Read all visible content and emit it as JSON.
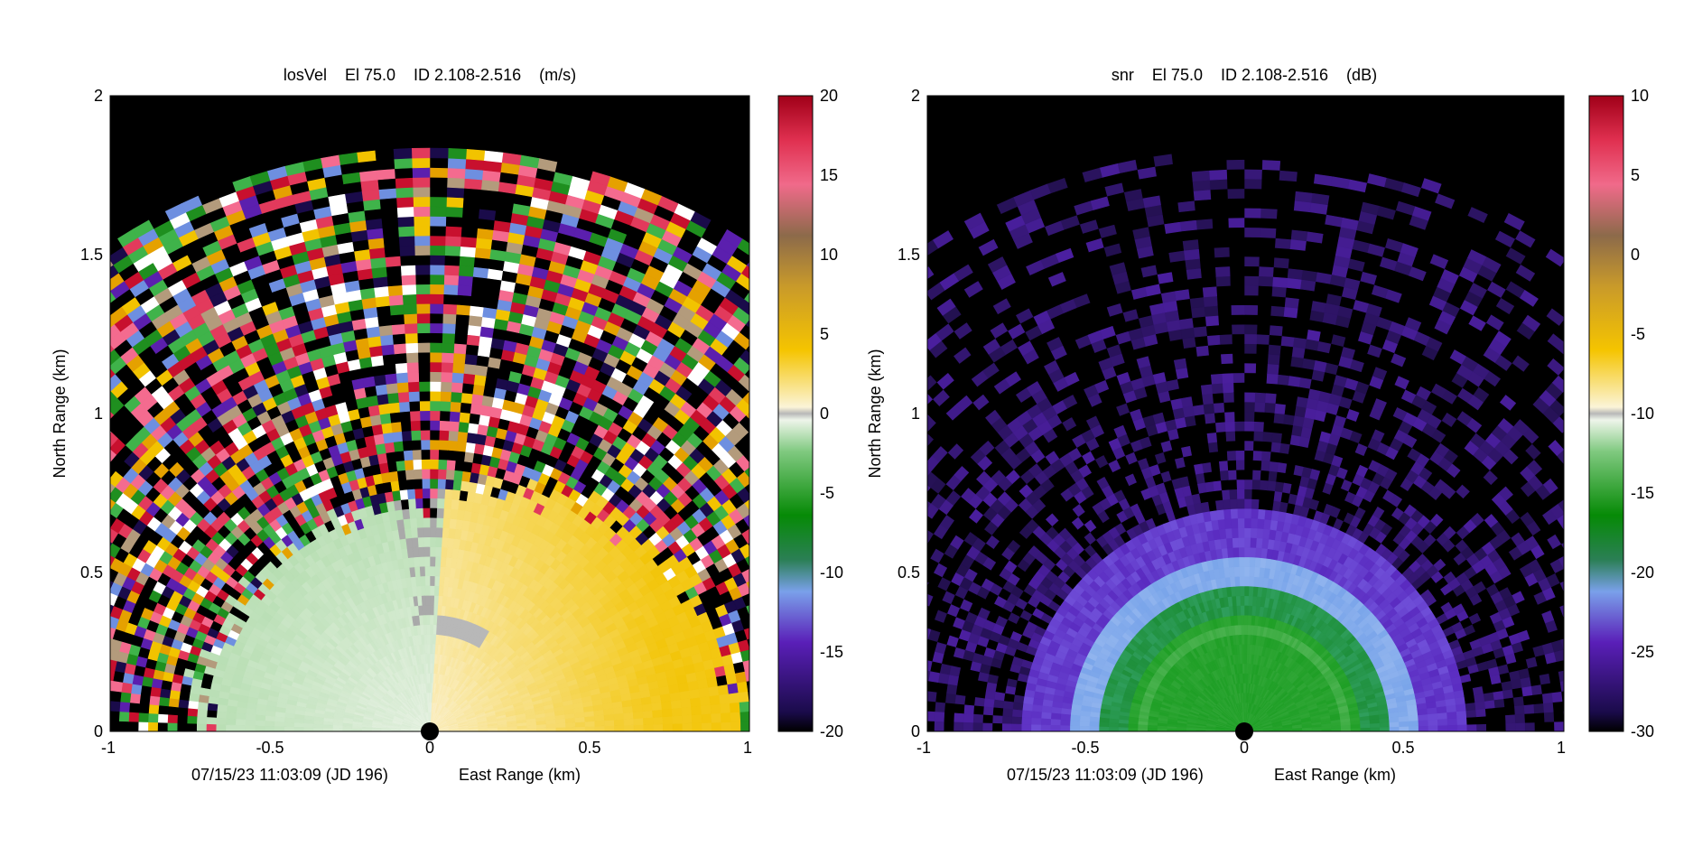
{
  "chart_data": [
    {
      "type": "heatmap",
      "field": "losVel",
      "title": "losVel    El 75.0    ID 2.108-2.516    (m/s)",
      "xlabel": "East Range (km)",
      "ylabel": "North Range (km)",
      "timestamp": "07/15/23 11:03:09 (JD 196)",
      "xlim": [
        -1,
        1
      ],
      "ylim": [
        0,
        2
      ],
      "x_ticks": [
        "-1",
        "-0.5",
        "0",
        "0.5",
        "1"
      ],
      "y_ticks": [
        "0",
        "0.5",
        "1",
        "1.5",
        "2"
      ],
      "max_range_km": 1.83,
      "colorbar": {
        "min": -20,
        "max": 20,
        "ticks": [
          "20",
          "15",
          "10",
          "5",
          "0",
          "-5",
          "-10",
          "-15",
          "-20"
        ]
      },
      "regions": [
        {
          "name": "west near field",
          "value": -2,
          "range_km": [
            0,
            0.8
          ]
        },
        {
          "name": "east near field",
          "value": 2,
          "range_km": [
            0,
            1.0
          ]
        },
        {
          "name": "outer noise",
          "value": "random",
          "range_km": [
            0.8,
            1.83
          ]
        }
      ]
    },
    {
      "type": "heatmap",
      "field": "snr",
      "title": "snr    El 75.0    ID 2.108-2.516    (dB)",
      "xlabel": "East Range (km)",
      "ylabel": "North Range (km)",
      "timestamp": "07/15/23 11:03:09 (JD 196)",
      "xlim": [
        -1,
        1
      ],
      "ylim": [
        0,
        2
      ],
      "x_ticks": [
        "-1",
        "-0.5",
        "0",
        "0.5",
        "1"
      ],
      "y_ticks": [
        "0",
        "0.5",
        "1",
        "1.5",
        "2"
      ],
      "max_range_km": 1.83,
      "colorbar": {
        "min": -30,
        "max": 10,
        "ticks": [
          "10",
          "5",
          "0",
          "-5",
          "-10",
          "-15",
          "-20",
          "-25",
          "-30"
        ]
      },
      "regions": [
        {
          "name": "inner core",
          "value": -18,
          "range_km": [
            0,
            0.38
          ]
        },
        {
          "name": "transition ring",
          "value": -23,
          "range_km": [
            0.38,
            0.58
          ]
        },
        {
          "name": "outer",
          "value": -28,
          "range_km": [
            0.58,
            1.83
          ]
        }
      ]
    }
  ]
}
